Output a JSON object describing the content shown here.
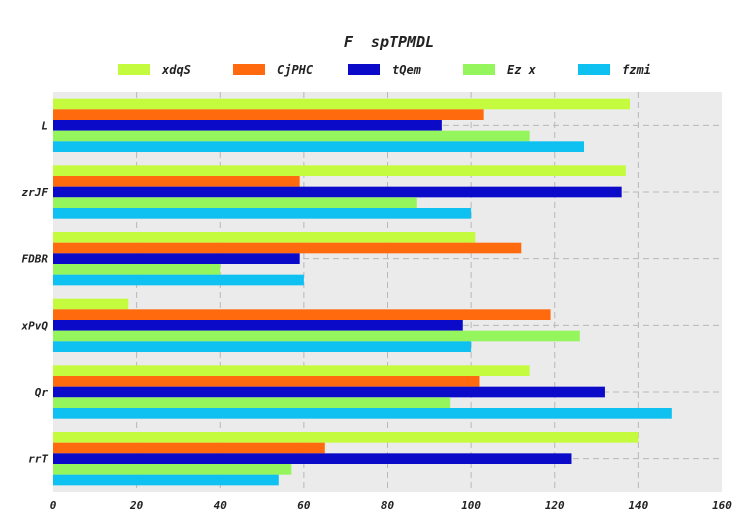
{
  "chart_data": {
    "type": "bar",
    "orientation": "horizontal",
    "title": "F  spTPMDL",
    "xlabel": "",
    "ylabel": "",
    "categories": [
      "L",
      "zrJF",
      "FDBR",
      "xPvQ",
      "Qr",
      "rrT"
    ],
    "series": [
      {
        "name": "xdqS",
        "color": "#c5fb3f",
        "values": [
          138,
          137,
          101,
          18,
          114,
          140
        ]
      },
      {
        "name": "CjPHC",
        "color": "#ff6a0f",
        "values": [
          103,
          59,
          112,
          119,
          102,
          65
        ]
      },
      {
        "name": "tQem",
        "color": "#0a0ac8",
        "values": [
          93,
          136,
          59,
          98,
          132,
          124
        ]
      },
      {
        "name": "Ez x",
        "color": "#94f55c",
        "values": [
          114,
          87,
          40,
          126,
          95,
          57
        ]
      },
      {
        "name": "fzmi",
        "color": "#0ec1f0",
        "values": [
          127,
          100,
          60,
          100,
          148,
          54
        ]
      }
    ],
    "xlim": [
      0,
      160
    ],
    "xticks": [
      0,
      20,
      40,
      60,
      80,
      100,
      120,
      140,
      160
    ],
    "grid": true,
    "legend_position": "top",
    "background": "#ebebeb",
    "grid_color": "#b8b8b8"
  }
}
